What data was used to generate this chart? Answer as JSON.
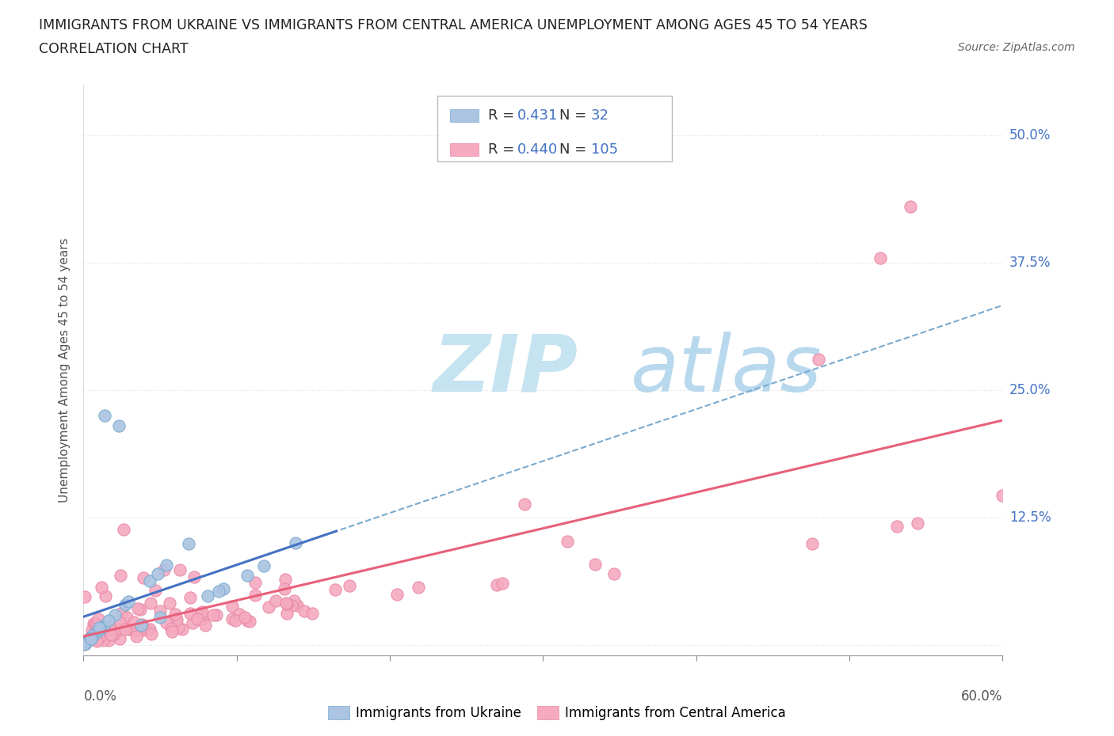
{
  "title_line1": "IMMIGRANTS FROM UKRAINE VS IMMIGRANTS FROM CENTRAL AMERICA UNEMPLOYMENT AMONG AGES 45 TO 54 YEARS",
  "title_line2": "CORRELATION CHART",
  "source_text": "Source: ZipAtlas.com",
  "ylabel": "Unemployment Among Ages 45 to 54 years",
  "xlim": [
    0.0,
    0.6
  ],
  "ylim": [
    -0.01,
    0.55
  ],
  "yticks": [
    0.0,
    0.125,
    0.25,
    0.375,
    0.5
  ],
  "ytick_labels": [
    "",
    "12.5%",
    "25.0%",
    "37.5%",
    "50.0%"
  ],
  "ukraine_R": 0.431,
  "ukraine_N": 32,
  "central_R": 0.44,
  "central_N": 105,
  "ukraine_color": "#aac4e2",
  "central_color": "#f5aabf",
  "ukraine_edge_color": "#7aaace",
  "central_edge_color": "#e888a8",
  "ukraine_line_color": "#4472c4",
  "central_line_color": "#e8607a",
  "dashed_line_color": "#7aaace",
  "background_color": "#ffffff",
  "watermark_color": "#daeef8",
  "grid_color": "#dddddd"
}
